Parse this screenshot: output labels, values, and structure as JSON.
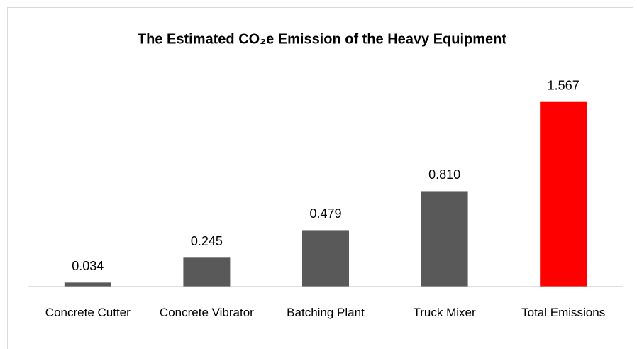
{
  "chart_data": {
    "type": "bar",
    "title": "The Estimated CO₂e Emission of the Heavy Equipment",
    "categories": [
      "Concrete Cutter",
      "Concrete Vibrator",
      "Batching Plant",
      "Truck Mixer",
      "Total Emissions"
    ],
    "values": [
      0.034,
      0.245,
      0.479,
      0.81,
      1.567
    ],
    "value_labels": [
      "0.034",
      "0.245",
      "0.479",
      "0.810",
      "1.567"
    ],
    "colors": [
      "#595959",
      "#595959",
      "#595959",
      "#595959",
      "#ff0000"
    ],
    "ylim": [
      0,
      1.8
    ]
  }
}
